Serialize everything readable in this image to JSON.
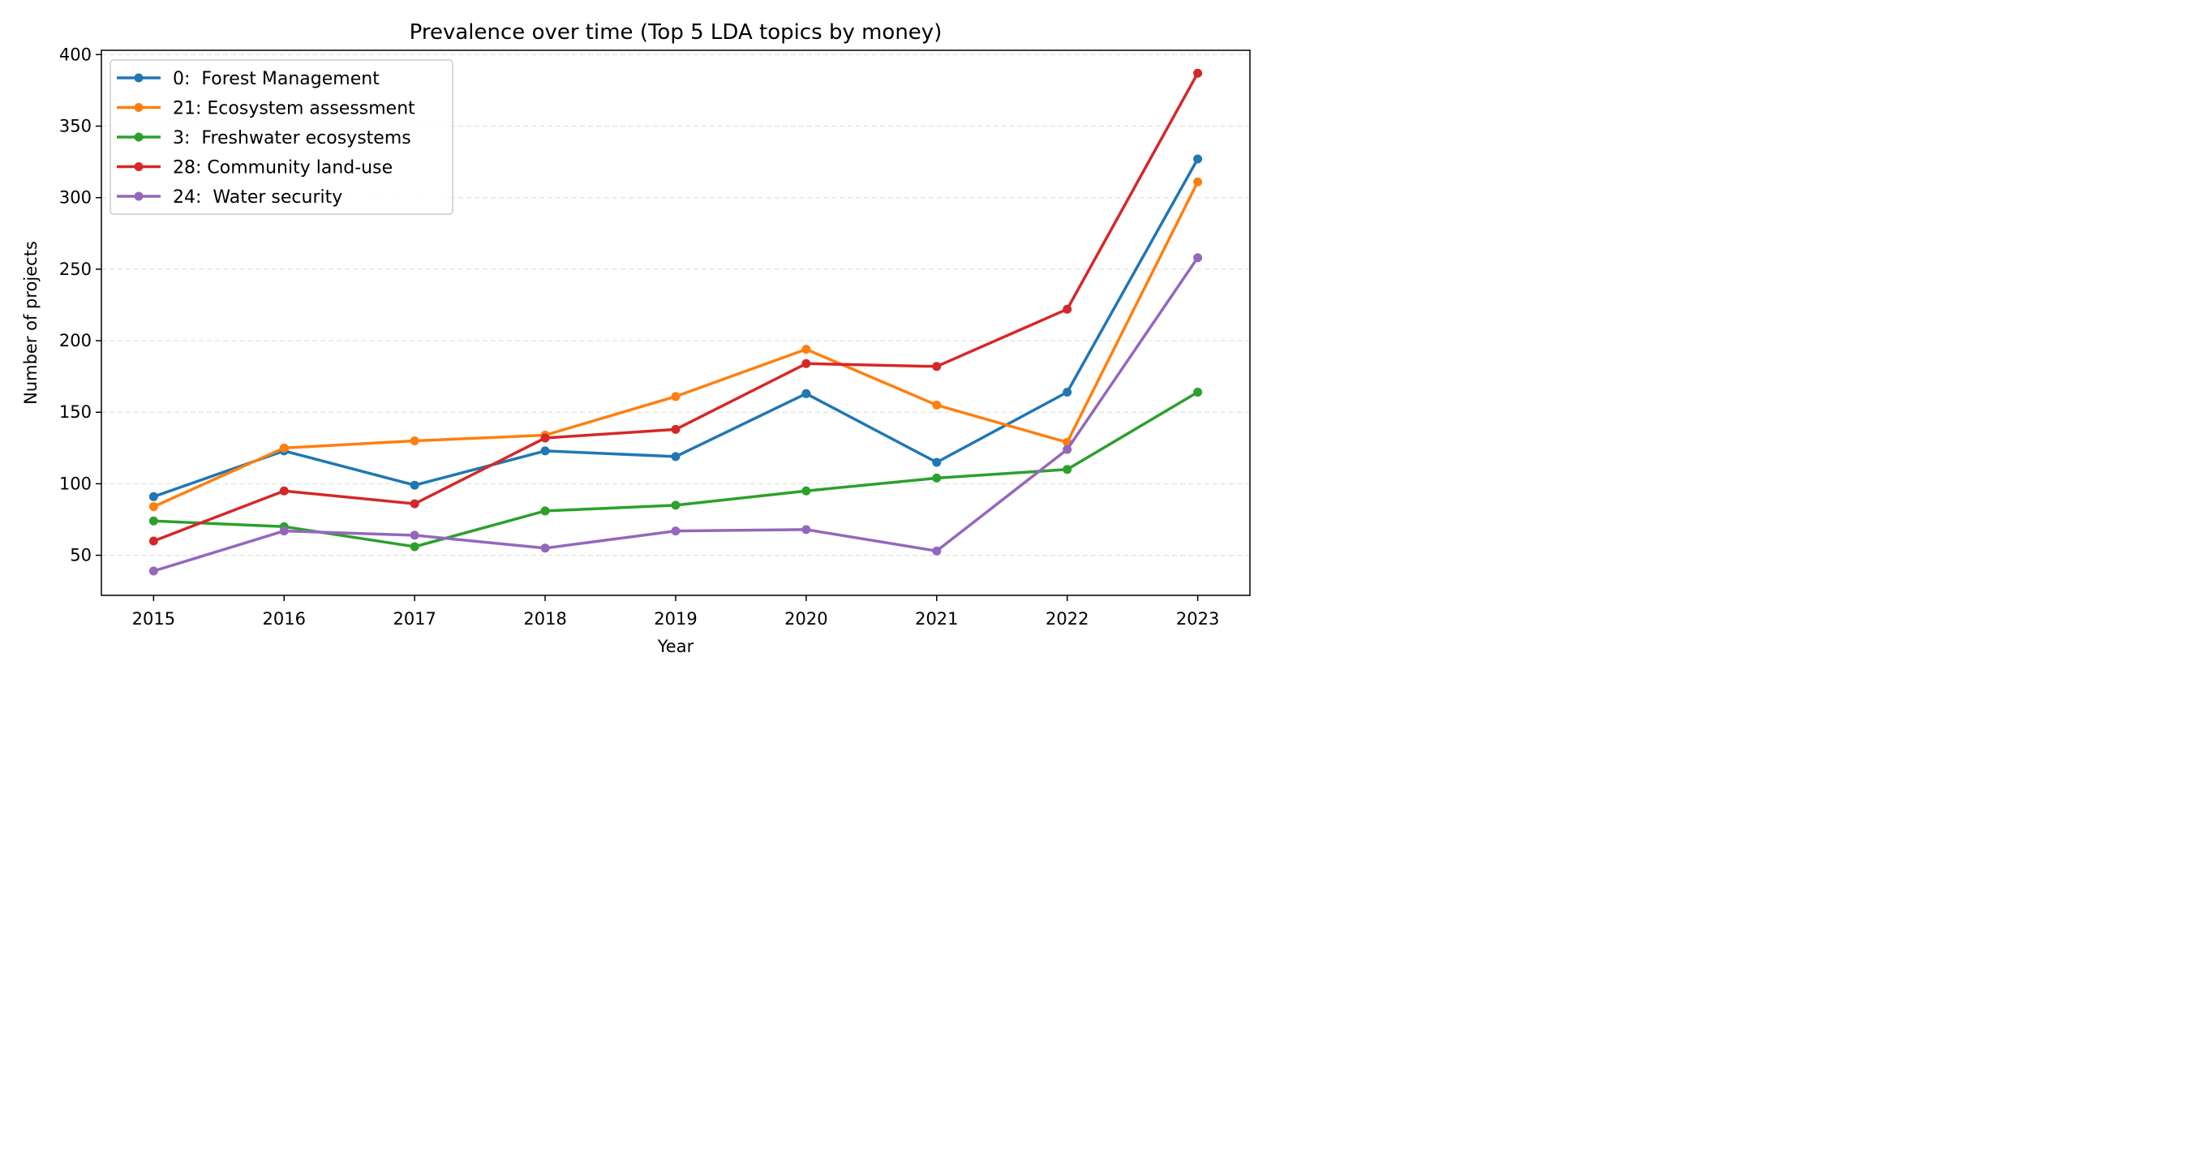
{
  "chart_data": {
    "type": "line",
    "title": "Prevalence over time (Top 5 LDA topics by money)",
    "xlabel": "Year",
    "ylabel": "Number of projects",
    "x": [
      2015,
      2016,
      2017,
      2018,
      2019,
      2020,
      2021,
      2022,
      2023
    ],
    "xlim": [
      2014.6,
      2023.4
    ],
    "ylim": [
      22,
      403
    ],
    "yticks": [
      50,
      100,
      150,
      200,
      250,
      300,
      350,
      400
    ],
    "grid": "y-dashed",
    "legend_position": "top-left",
    "series": [
      {
        "name": "0:  Forest Management",
        "color": "#1f77b4",
        "values": [
          91,
          123,
          99,
          123,
          119,
          163,
          115,
          164,
          327
        ]
      },
      {
        "name": "21: Ecosystem assessment",
        "color": "#ff7f0e",
        "values": [
          84,
          125,
          130,
          134,
          161,
          194,
          155,
          129,
          311
        ]
      },
      {
        "name": "3:  Freshwater ecosystems",
        "color": "#2ca02c",
        "values": [
          74,
          70,
          56,
          81,
          85,
          95,
          104,
          110,
          164
        ]
      },
      {
        "name": "28: Community land-use",
        "color": "#d62728",
        "values": [
          60,
          95,
          86,
          132,
          138,
          184,
          182,
          222,
          387
        ]
      },
      {
        "name": "24:  Water security",
        "color": "#9467bd",
        "values": [
          39,
          67,
          64,
          55,
          67,
          68,
          53,
          124,
          258
        ]
      }
    ]
  }
}
